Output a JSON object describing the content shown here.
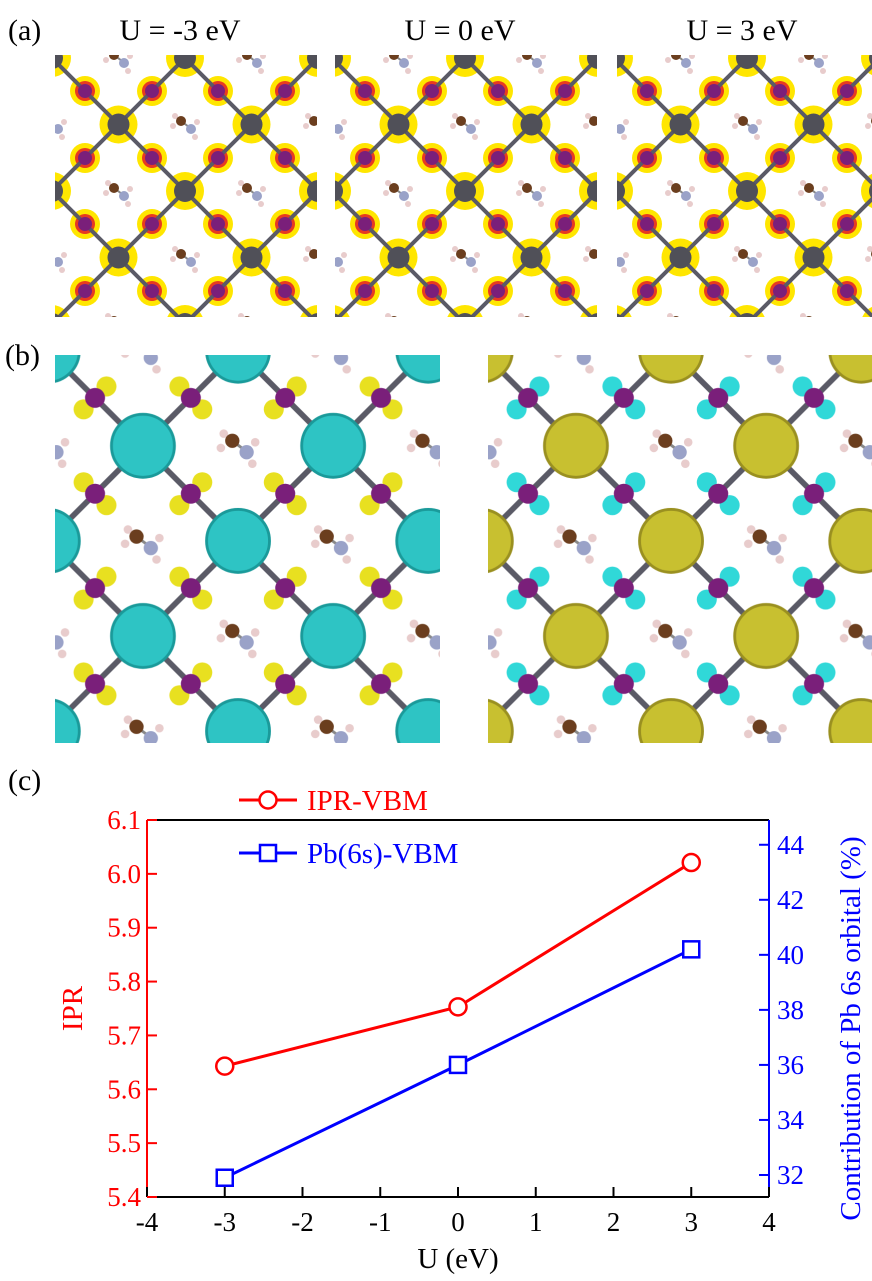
{
  "panel_a": {
    "label": "(a)",
    "titles": [
      "U = -3 eV",
      "U = 0 eV",
      "U = 3 eV"
    ]
  },
  "panel_b": {
    "label": "(b)"
  },
  "chart_data": {
    "type": "line",
    "panel_label": "(c)",
    "x": [
      -3,
      0,
      3
    ],
    "xlim": [
      -4,
      4
    ],
    "xticks": [
      -4,
      -3,
      -2,
      -1,
      0,
      1,
      2,
      3,
      4
    ],
    "xlabel": "U (eV)",
    "ylabel": "IPR",
    "y2label": "Contribution of Pb 6s orbital (%)",
    "ylim": [
      5.4,
      6.1
    ],
    "yticks": [
      5.4,
      5.5,
      5.6,
      5.7,
      5.8,
      5.9,
      {
        "value": 6,
        "label": "6.0"
      },
      6.1
    ],
    "y2lim": [
      31.2,
      44.9
    ],
    "y2ticks": [
      32,
      34,
      36,
      38,
      40,
      42,
      44
    ],
    "legend": "upper left",
    "series": [
      {
        "name": "IPR-VBM",
        "color": "#ff0000",
        "marker": "circle",
        "values": [
          5.643,
          5.753,
          6.021
        ]
      },
      {
        "name": "Pb(6s)-VBM",
        "color": "#0000ff",
        "marker": "square",
        "axis": "y2",
        "values": [
          31.9,
          36.0,
          40.2
        ]
      }
    ]
  }
}
